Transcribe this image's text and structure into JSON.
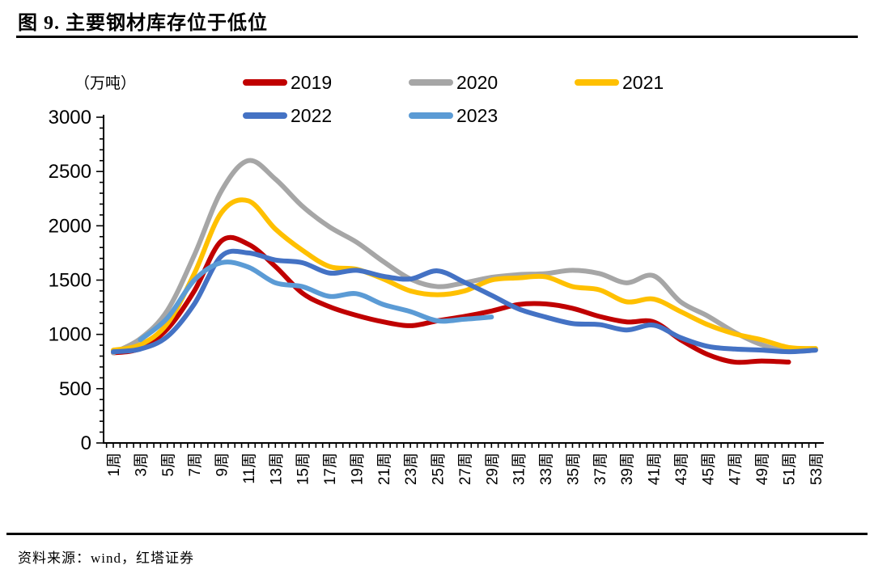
{
  "header": {
    "title": "图 9. 主要钢材库存位于低位"
  },
  "footer": {
    "source": "资料来源：wind，红塔证券"
  },
  "legend": {
    "items": [
      {
        "label": "2019",
        "color": "#C00000"
      },
      {
        "label": "2020",
        "color": "#A6A6A6"
      },
      {
        "label": "2021",
        "color": "#FFC000"
      },
      {
        "label": "2022",
        "color": "#4472C4"
      },
      {
        "label": "2023",
        "color": "#5B9BD5"
      }
    ]
  },
  "chart_data": {
    "type": "line",
    "title": "图 9. 主要钢材库存位于低位",
    "unit_label": "（万吨）",
    "ylabel": "万吨",
    "xlabel": "",
    "ylim": [
      0,
      3000
    ],
    "y_tick_step": 500,
    "y_minor_tick_step": 100,
    "grid": false,
    "legend_position": "top",
    "y_tick_labels": [
      "0",
      "500",
      "1000",
      "1500",
      "2000",
      "2500",
      "3000"
    ],
    "x_weeks": [
      1,
      3,
      5,
      7,
      9,
      11,
      13,
      15,
      17,
      19,
      21,
      23,
      25,
      27,
      29,
      31,
      33,
      35,
      37,
      39,
      41,
      43,
      45,
      47,
      49,
      51,
      53
    ],
    "x_tick_labels": [
      "1周",
      "3周",
      "5周",
      "7周",
      "9周",
      "11周",
      "13周",
      "15周",
      "17周",
      "19周",
      "21周",
      "23周",
      "25周",
      "27周",
      "29周",
      "31周",
      "33周",
      "35周",
      "37周",
      "39周",
      "41周",
      "43周",
      "45周",
      "47周",
      "49周",
      "51周",
      "53周"
    ],
    "series": [
      {
        "name": "2019",
        "color": "#C00000",
        "values": [
          830,
          870,
          1050,
          1400,
          1860,
          1830,
          1625,
          1380,
          1255,
          1175,
          1115,
          1080,
          1125,
          1165,
          1215,
          1275,
          1280,
          1240,
          1165,
          1115,
          1115,
          950,
          815,
          745,
          755,
          745,
          null
        ]
      },
      {
        "name": "2020",
        "color": "#A6A6A6",
        "values": [
          830,
          960,
          1220,
          1730,
          2320,
          2600,
          2430,
          2180,
          1990,
          1850,
          1670,
          1510,
          1440,
          1475,
          1525,
          1550,
          1560,
          1590,
          1560,
          1475,
          1540,
          1300,
          1170,
          1020,
          905,
          845,
          855
        ]
      },
      {
        "name": "2021",
        "color": "#FFC000",
        "values": [
          855,
          905,
          1100,
          1560,
          2120,
          2230,
          1970,
          1775,
          1625,
          1600,
          1510,
          1400,
          1365,
          1400,
          1500,
          1520,
          1530,
          1440,
          1410,
          1300,
          1325,
          1210,
          1090,
          1005,
          950,
          880,
          870
        ]
      },
      {
        "name": "2022",
        "color": "#4472C4",
        "values": [
          840,
          865,
          980,
          1280,
          1720,
          1750,
          1685,
          1660,
          1565,
          1590,
          1535,
          1510,
          1585,
          1480,
          1360,
          1235,
          1160,
          1100,
          1090,
          1040,
          1085,
          970,
          890,
          865,
          855,
          840,
          855
        ]
      },
      {
        "name": "2023",
        "color": "#5B9BD5",
        "values": [
          null,
          950,
          1150,
          1500,
          1660,
          1620,
          1475,
          1440,
          1350,
          1375,
          1275,
          1210,
          1125,
          1140,
          1160,
          null,
          null,
          null,
          null,
          null,
          null,
          null,
          null,
          null,
          null,
          null,
          null
        ]
      }
    ]
  }
}
